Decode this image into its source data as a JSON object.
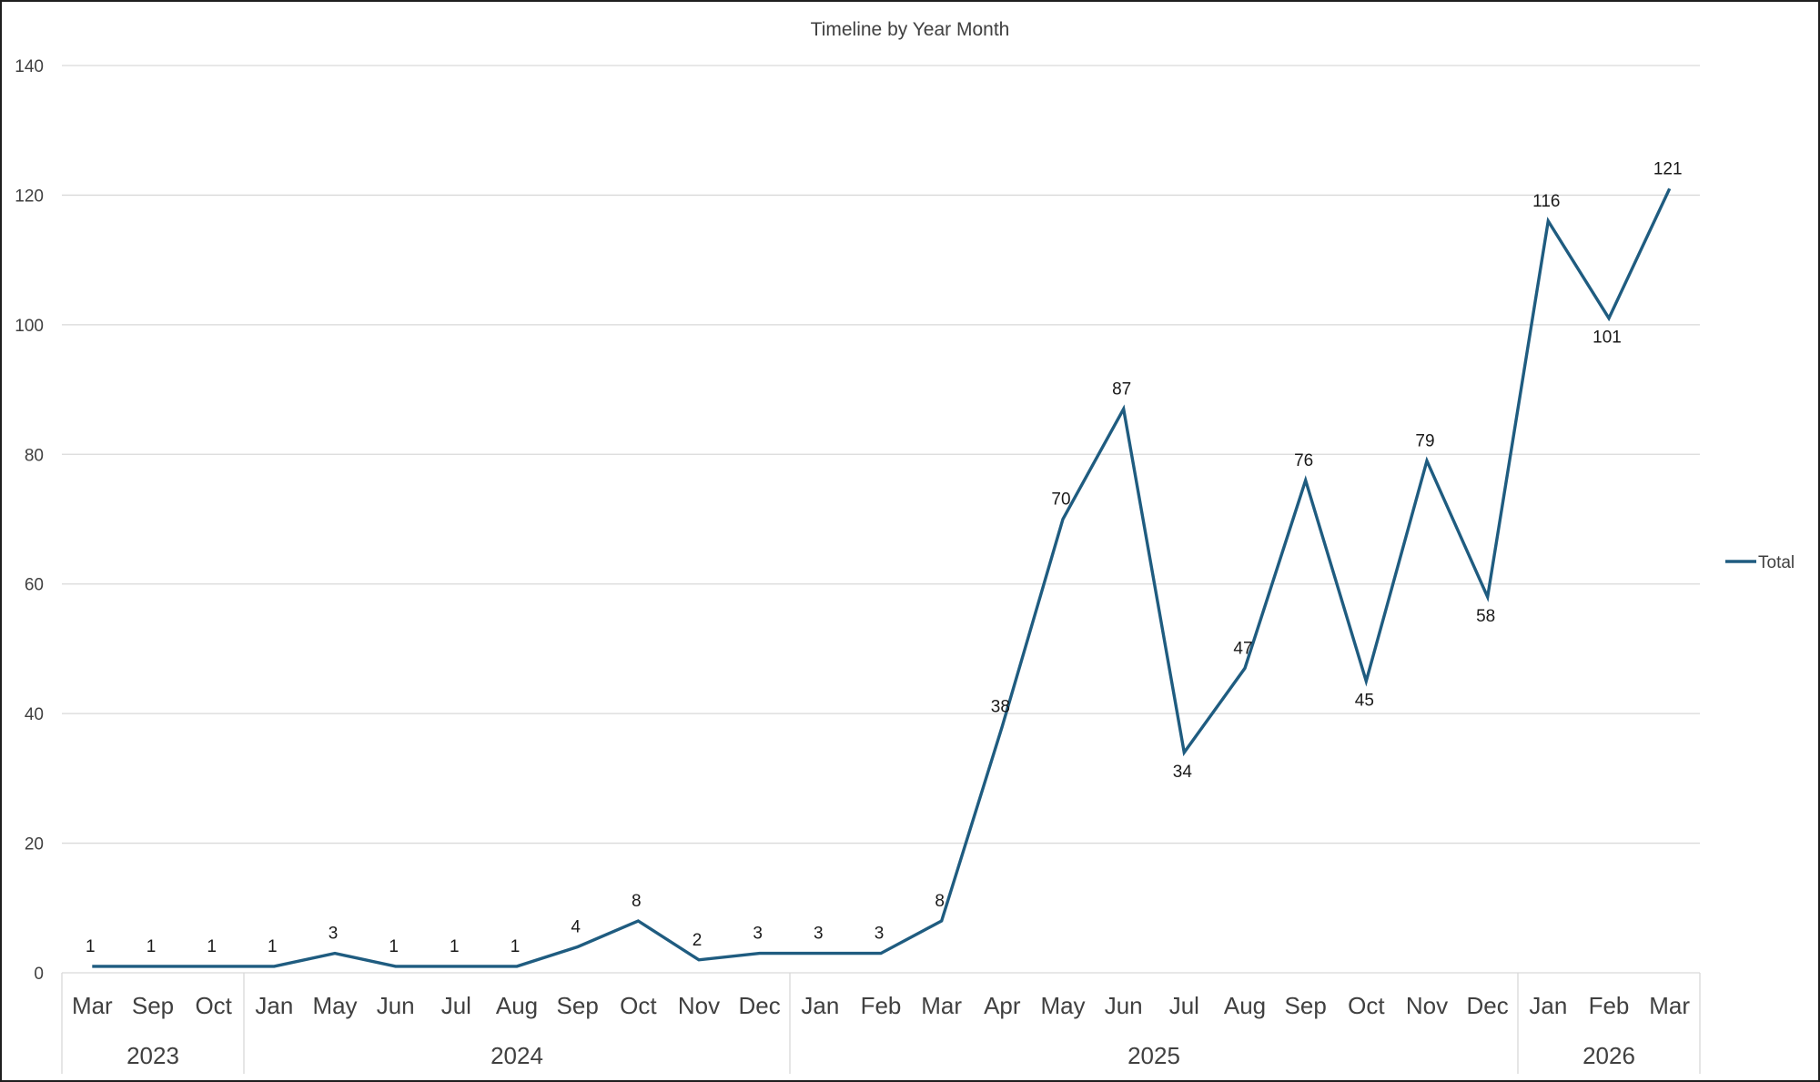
{
  "chart_data": {
    "type": "line",
    "title": "Timeline by Year Month",
    "xlabel": "",
    "ylabel": "",
    "ylim": [
      0,
      140
    ],
    "yticks": [
      "0",
      "20",
      "40",
      "60",
      "80",
      "100",
      "120",
      "140"
    ],
    "grid": true,
    "legend_position": "right",
    "colors": {
      "series": "#1f5c80",
      "grid": "#d9d9d9",
      "text": "#404040"
    },
    "categories": [
      "Mar",
      "Sep",
      "Oct",
      "Jan",
      "May",
      "Jun",
      "Jul",
      "Aug",
      "Sep",
      "Oct",
      "Nov",
      "Dec",
      "Jan",
      "Feb",
      "Mar",
      "Apr",
      "May",
      "Jun",
      "Jul",
      "Aug",
      "Sep",
      "Oct",
      "Nov",
      "Dec",
      "Jan",
      "Feb",
      "Mar"
    ],
    "years": [
      {
        "label": "2023",
        "count": 3
      },
      {
        "label": "2024",
        "count": 9
      },
      {
        "label": "2025",
        "count": 12
      },
      {
        "label": "2026",
        "count": 3
      }
    ],
    "series": [
      {
        "name": "Total",
        "values": [
          1,
          1,
          1,
          1,
          3,
          1,
          1,
          1,
          4,
          8,
          2,
          3,
          3,
          3,
          8,
          38,
          70,
          87,
          34,
          47,
          76,
          45,
          79,
          58,
          116,
          101,
          121
        ],
        "labels": [
          "1",
          "1",
          "1",
          "1",
          "3",
          "1",
          "1",
          "1",
          "4",
          "8",
          "2",
          "3",
          "3",
          "3",
          "8",
          "38",
          "70",
          "87",
          "34",
          "47",
          "76",
          "45",
          "79",
          "58",
          "116",
          "101",
          "121"
        ]
      }
    ]
  }
}
